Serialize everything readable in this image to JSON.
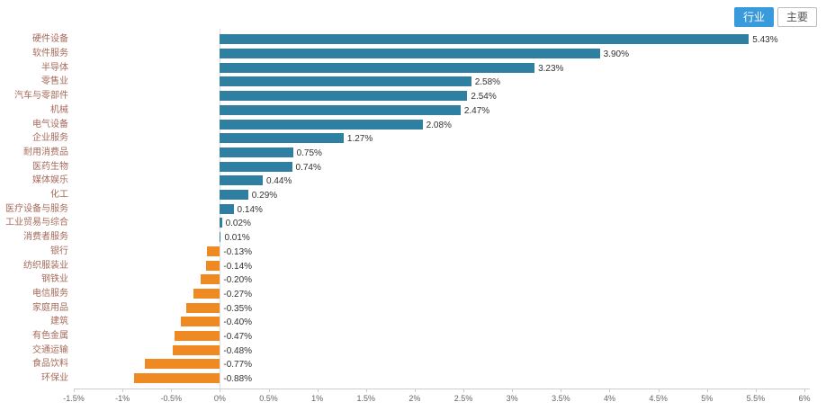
{
  "toolbar": {
    "industry_button": "行业",
    "main_button": "主要"
  },
  "colors": {
    "positive_bar": "#2f7fa0",
    "negative_bar": "#ef8a23",
    "accent_button": "#3a9bdc",
    "category_label": "#a56a5a",
    "value_label": "#333333",
    "axis": "#cccccc"
  },
  "chart_data": {
    "type": "bar",
    "orientation": "horizontal",
    "title": "",
    "xlabel": "",
    "ylabel": "",
    "xlim": [
      -1.5,
      6
    ],
    "grid": false,
    "categories": [
      "硬件设备",
      "软件服务",
      "半导体",
      "零售业",
      "汽车与零部件",
      "机械",
      "电气设备",
      "企业服务",
      "耐用消费品",
      "医药生物",
      "媒体娱乐",
      "化工",
      "医疗设备与服务",
      "工业贸易与综合",
      "消费者服务",
      "银行",
      "纺织服装业",
      "钢铁业",
      "电信服务",
      "家庭用品",
      "建筑",
      "有色金属",
      "交通运输",
      "食品饮料",
      "环保业"
    ],
    "values": [
      5.43,
      3.9,
      3.23,
      2.58,
      2.54,
      2.47,
      2.08,
      1.27,
      0.75,
      0.74,
      0.44,
      0.29,
      0.14,
      0.02,
      0.01,
      -0.13,
      -0.14,
      -0.2,
      -0.27,
      -0.35,
      -0.4,
      -0.47,
      -0.48,
      -0.77,
      -0.88
    ],
    "value_labels": [
      "5.43%",
      "3.90%",
      "3.23%",
      "2.58%",
      "2.54%",
      "2.47%",
      "2.08%",
      "1.27%",
      "0.75%",
      "0.74%",
      "0.44%",
      "0.29%",
      "0.14%",
      "0.02%",
      "0.01%",
      "-0.13%",
      "-0.14%",
      "-0.20%",
      "-0.27%",
      "-0.35%",
      "-0.40%",
      "-0.47%",
      "-0.48%",
      "-0.77%",
      "-0.88%"
    ],
    "x_ticks": [
      "-1.5%",
      "-1%",
      "-0.5%",
      "0%",
      "0.5%",
      "1%",
      "1.5%",
      "2%",
      "2.5%",
      "3%",
      "3.5%",
      "4%",
      "4.5%",
      "5%",
      "5.5%",
      "6%"
    ],
    "x_tick_values": [
      -1.5,
      -1,
      -0.5,
      0,
      0.5,
      1,
      1.5,
      2,
      2.5,
      3,
      3.5,
      4,
      4.5,
      5,
      5.5,
      6
    ],
    "legend_position": "none"
  }
}
